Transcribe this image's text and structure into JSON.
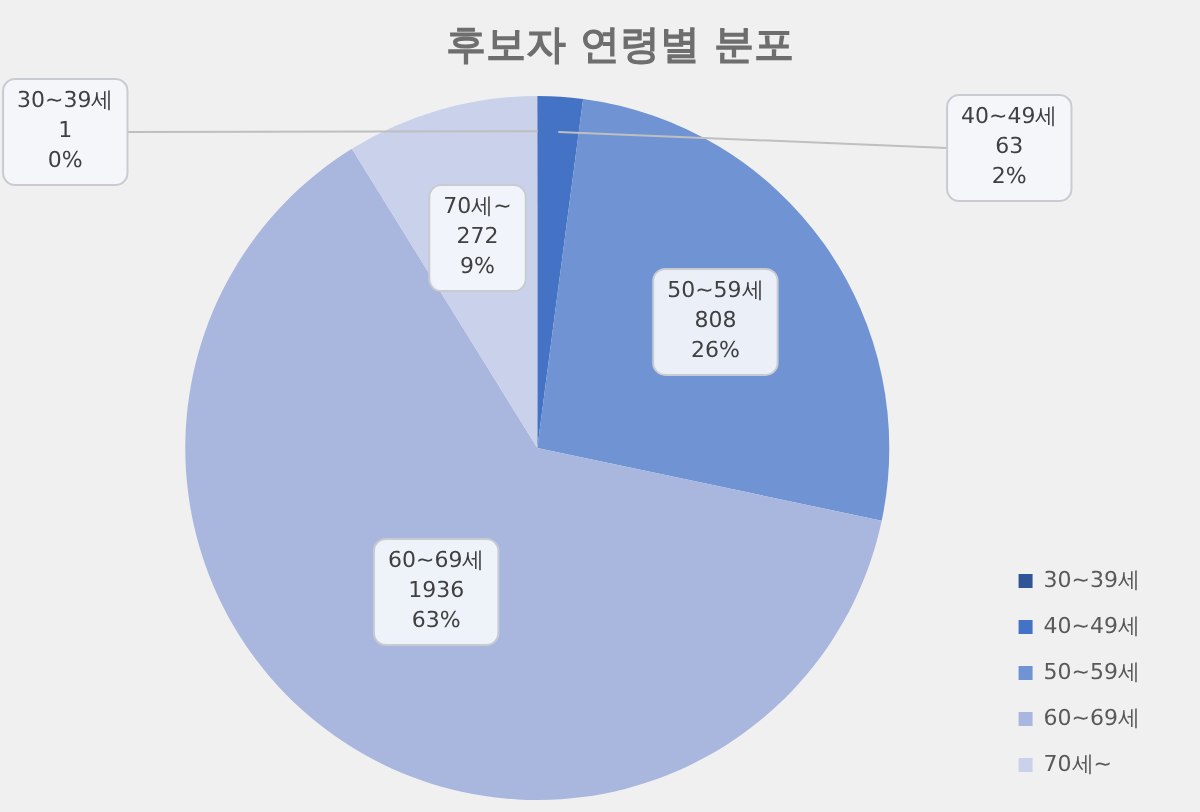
{
  "chart_data": {
    "type": "pie",
    "title": "후보자 연령별 분포",
    "categories": [
      "30~39세",
      "40~49세",
      "50~59세",
      "60~69세",
      "70세~"
    ],
    "values": [
      1,
      63,
      808,
      1936,
      272
    ],
    "colors": [
      "#2f5597",
      "#4472c4",
      "#6f93d3",
      "#a9b7de",
      "#cad1ea"
    ],
    "value_labels": [
      "1\n0%",
      "63\n2%",
      "808\n26%",
      "1936\n63%",
      "272\n9%"
    ],
    "legend": "right"
  }
}
